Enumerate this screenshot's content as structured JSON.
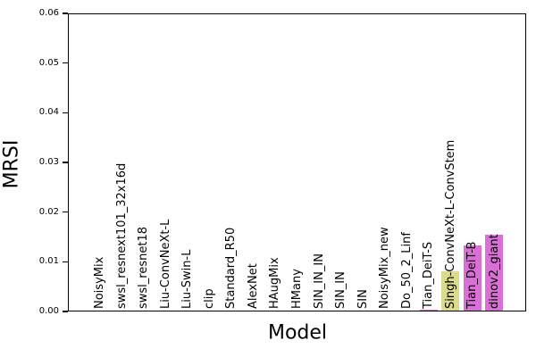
{
  "chart_data": {
    "type": "bar",
    "xlabel": "Model",
    "ylabel": "MRSI",
    "ylim": [
      0,
      0.06
    ],
    "ytick_labels": [
      "0.00",
      "0.01",
      "0.02",
      "0.03",
      "0.04",
      "0.05",
      "0.06"
    ],
    "grid": false,
    "legend": null,
    "categories": [
      "NoisyMix",
      "swsl_resnext101_32x16d",
      "swsl_resnet18",
      "Liu-ConvNeXt-L",
      "Liu-Swin-L",
      "clip",
      "Standard_R50",
      "AlexNet",
      "HAugMix",
      "HMany",
      "SIN_IN_IN",
      "SIN_IN",
      "SIN",
      "NoisyMix_new",
      "Do_50_2_Linf",
      "Tian_DeiT-S",
      "Singh-ConvNeXt-L-ConvStem",
      "Tian_DeiT-B",
      "dinov2_giant"
    ],
    "values": [
      0,
      0,
      0,
      0,
      0,
      0,
      0,
      0,
      0,
      0,
      0,
      0,
      0,
      0,
      0,
      0.0004,
      0.008,
      0.0133,
      0.0155
    ],
    "bar_colors": [
      "#da70d6",
      "#da70d6",
      "#da70d6",
      "#da70d6",
      "#da70d6",
      "#da70d6",
      "#da70d6",
      "#da70d6",
      "#da70d6",
      "#da70d6",
      "#da70d6",
      "#da70d6",
      "#da70d6",
      "#da70d6",
      "#da70d6",
      "#da70d6",
      "#dbdb8d",
      "#da70d6",
      "#da70d6"
    ],
    "colors": {
      "default_bar": "#da70d6",
      "highlight_bar": "#dbdb8d",
      "axis": "#000000",
      "text": "#000000"
    }
  }
}
